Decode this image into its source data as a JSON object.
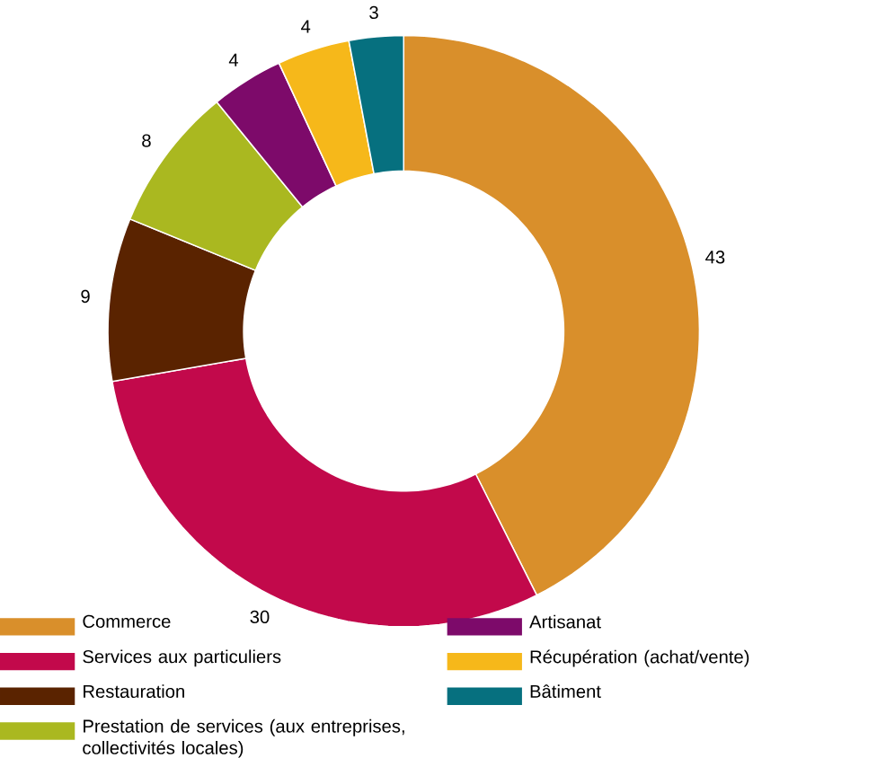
{
  "chart_data": {
    "type": "donut",
    "categories": [
      "Commerce",
      "Services aux particuliers",
      "Restauration",
      "Prestation de services (aux entreprises, collectivités locales)",
      "Artisanat",
      "Récupération (achat/vente)",
      "Bâtiment"
    ],
    "values": [
      43,
      30,
      9,
      8,
      4,
      4,
      3
    ],
    "colors": [
      "#d98f2b",
      "#c2094b",
      "#5a2300",
      "#aab820",
      "#7d0a6a",
      "#f6b81a",
      "#06707f"
    ],
    "data_labels": true,
    "legend": "bottom"
  }
}
